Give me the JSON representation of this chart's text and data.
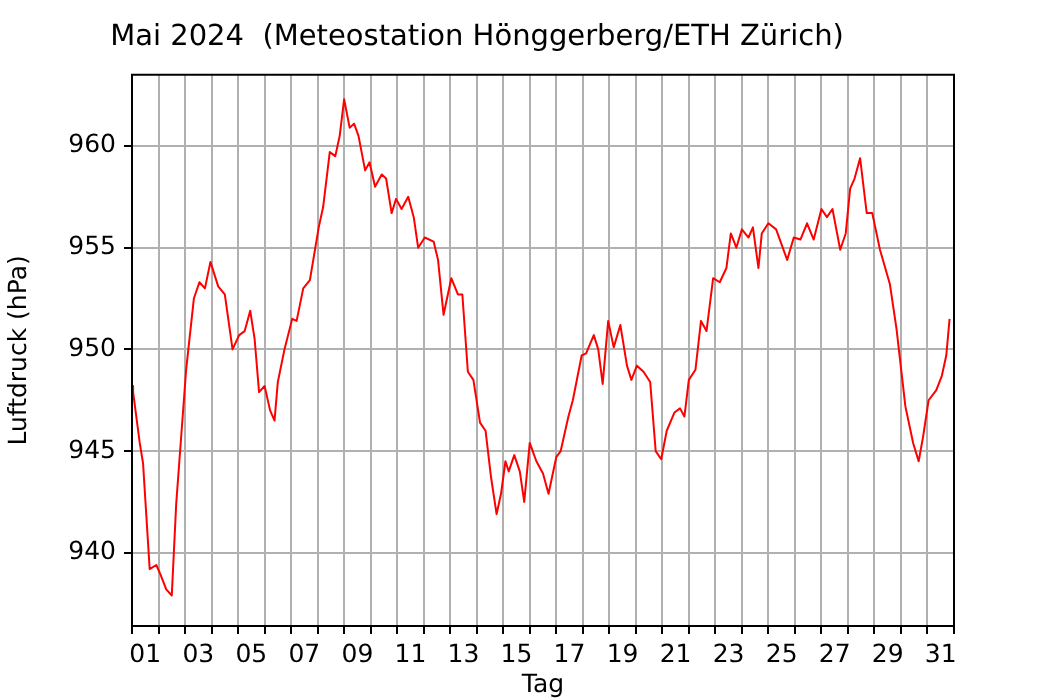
{
  "chart_data": {
    "type": "line",
    "title": "Mai 2024  (Meteostation Hönggerberg/ETH Zürich)",
    "xlabel": "Tag",
    "ylabel": "Luftdruck (hPa)",
    "x": [
      "2024-05-01T00:00",
      "2024-05-01T01:00",
      "2024-05-01T07:00",
      "2024-05-01T10:00",
      "2024-05-01T16:00",
      "2024-05-01T22:00",
      "2024-05-02T02:00",
      "2024-05-02T07:00",
      "2024-05-02T12:00",
      "2024-05-02T16:00",
      "2024-05-03T01:00",
      "2024-05-03T08:00",
      "2024-05-03T13:00",
      "2024-05-03T18:00",
      "2024-05-03T23:00",
      "2024-05-04T06:00",
      "2024-05-04T12:00",
      "2024-05-04T19:00",
      "2024-05-05T01:00",
      "2024-05-05T06:00",
      "2024-05-05T11:00",
      "2024-05-05T15:00",
      "2024-05-05T19:00",
      "2024-05-06T00:00",
      "2024-05-06T05:00",
      "2024-05-06T09:00",
      "2024-05-06T12:00",
      "2024-05-06T18:00",
      "2024-05-07T01:00",
      "2024-05-07T05:00",
      "2024-05-07T11:00",
      "2024-05-07T17:00",
      "2024-05-08T01:00",
      "2024-05-08T05:00",
      "2024-05-08T11:00",
      "2024-05-08T16:00",
      "2024-05-08T20:00",
      "2024-05-09T00:00",
      "2024-05-09T05:00",
      "2024-05-09T09:00",
      "2024-05-09T13:00",
      "2024-05-09T19:00",
      "2024-05-09T23:00",
      "2024-05-10T04:00",
      "2024-05-10T10:00",
      "2024-05-10T14:00",
      "2024-05-10T19:00",
      "2024-05-10T23:00",
      "2024-05-11T04:00",
      "2024-05-11T10:00",
      "2024-05-11T15:00",
      "2024-05-11T19:00",
      "2024-05-12T01:00",
      "2024-05-12T09:00",
      "2024-05-12T13:00",
      "2024-05-12T18:00",
      "2024-05-13T01:00",
      "2024-05-13T07:00",
      "2024-05-13T11:00",
      "2024-05-13T16:00",
      "2024-05-13T21:00",
      "2024-05-14T03:00",
      "2024-05-14T08:00",
      "2024-05-14T13:00",
      "2024-05-14T18:00",
      "2024-05-14T22:00",
      "2024-05-15T02:00",
      "2024-05-15T05:00",
      "2024-05-15T10:00",
      "2024-05-15T15:00",
      "2024-05-15T19:00",
      "2024-05-16T00:00",
      "2024-05-16T06:00",
      "2024-05-16T12:00",
      "2024-05-16T17:00",
      "2024-05-17T00:00",
      "2024-05-17T04:00",
      "2024-05-17T11:00",
      "2024-05-17T15:00",
      "2024-05-17T23:00",
      "2024-05-18T03:00",
      "2024-05-18T10:00",
      "2024-05-18T14:00",
      "2024-05-18T18:00",
      "2024-05-18T23:00",
      "2024-05-19T04:00",
      "2024-05-19T10:00",
      "2024-05-19T16:00",
      "2024-05-19T20:00",
      "2024-05-20T01:00",
      "2024-05-20T07:00",
      "2024-05-20T13:00",
      "2024-05-20T18:00",
      "2024-05-20T23:00",
      "2024-05-21T04:00",
      "2024-05-21T11:00",
      "2024-05-21T16:00",
      "2024-05-21T20:00",
      "2024-05-22T00:00",
      "2024-05-22T06:00",
      "2024-05-22T11:00",
      "2024-05-22T16:00",
      "2024-05-22T22:00",
      "2024-05-23T04:00",
      "2024-05-23T10:00",
      "2024-05-23T14:00",
      "2024-05-23T19:00",
      "2024-05-24T00:00",
      "2024-05-24T06:00",
      "2024-05-24T10:00",
      "2024-05-24T15:00",
      "2024-05-24T18:00",
      "2024-05-25T00:00",
      "2024-05-25T07:00",
      "2024-05-25T17:00",
      "2024-05-25T23:00",
      "2024-05-26T05:00",
      "2024-05-26T11:00",
      "2024-05-26T17:00",
      "2024-05-27T00:00",
      "2024-05-27T05:00",
      "2024-05-27T10:00",
      "2024-05-27T17:00",
      "2024-05-27T22:00",
      "2024-05-28T02:00",
      "2024-05-28T06:00",
      "2024-05-28T11:00",
      "2024-05-28T17:00",
      "2024-05-28T22:00",
      "2024-05-29T05:00",
      "2024-05-29T14:00",
      "2024-05-29T20:00",
      "2024-05-30T04:00",
      "2024-05-30T11:00",
      "2024-05-30T16:00",
      "2024-05-30T20:00",
      "2024-05-31T01:00",
      "2024-05-31T08:00",
      "2024-05-31T13:00",
      "2024-05-31T17:00",
      "2024-05-31T20:00"
    ],
    "series": [
      {
        "color": "#ff0000",
        "values": [
          948.2,
          947.9,
          945.4,
          944.4,
          939.2,
          939.4,
          938.9,
          938.2,
          937.9,
          942.4,
          949.0,
          952.5,
          953.3,
          953.0,
          954.3,
          953.1,
          952.7,
          950.0,
          950.7,
          950.9,
          951.9,
          950.5,
          947.9,
          948.2,
          947.0,
          946.5,
          948.4,
          950.0,
          951.5,
          951.4,
          953.0,
          953.4,
          956.0,
          957.0,
          959.7,
          959.5,
          960.5,
          962.3,
          960.9,
          961.1,
          960.5,
          958.8,
          959.2,
          958.0,
          958.6,
          958.4,
          956.7,
          957.4,
          956.9,
          957.5,
          956.5,
          955.0,
          955.5,
          955.3,
          954.4,
          951.7,
          953.5,
          952.7,
          952.7,
          948.9,
          948.5,
          946.4,
          946.0,
          943.7,
          941.9,
          942.9,
          944.5,
          944.0,
          944.8,
          944.0,
          942.5,
          945.4,
          944.5,
          943.9,
          942.9,
          944.7,
          945.0,
          946.7,
          947.5,
          949.7,
          949.8,
          950.7,
          950.0,
          948.3,
          951.4,
          950.1,
          951.2,
          949.2,
          948.5,
          949.2,
          948.9,
          948.4,
          945.0,
          944.6,
          946.0,
          946.9,
          947.1,
          946.7,
          948.5,
          949.0,
          951.4,
          950.9,
          953.5,
          953.3,
          954.0,
          955.7,
          955.0,
          955.9,
          955.5,
          956.0,
          954.0,
          955.7,
          956.2,
          955.9,
          954.4,
          955.5,
          955.4,
          956.2,
          955.4,
          956.9,
          956.5,
          956.9,
          954.9,
          955.7,
          957.9,
          958.4,
          959.4,
          956.7,
          956.7,
          954.9,
          953.2,
          951.0,
          947.2,
          945.4,
          944.5,
          945.7,
          947.5,
          948.0,
          948.7,
          949.7,
          951.5
        ]
      }
    ],
    "xlim": [
      "2024-05-01",
      "2024-06-01"
    ],
    "xticks": [
      {
        "value": "2024-05-01",
        "label": null
      },
      {
        "value": "2024-05-01T12:00",
        "label": "01"
      },
      {
        "value": "2024-05-02",
        "label": null
      },
      {
        "value": "2024-05-03",
        "label": null
      },
      {
        "value": "2024-05-03T12:00",
        "label": "03"
      },
      {
        "value": "2024-05-04",
        "label": null
      },
      {
        "value": "2024-05-05",
        "label": null
      },
      {
        "value": "2024-05-05T12:00",
        "label": "05"
      },
      {
        "value": "2024-05-06",
        "label": null
      },
      {
        "value": "2024-05-07",
        "label": null
      },
      {
        "value": "2024-05-07T12:00",
        "label": "07"
      },
      {
        "value": "2024-05-08",
        "label": null
      },
      {
        "value": "2024-05-09",
        "label": null
      },
      {
        "value": "2024-05-09T12:00",
        "label": "09"
      },
      {
        "value": "2024-05-10",
        "label": null
      },
      {
        "value": "2024-05-11",
        "label": null
      },
      {
        "value": "2024-05-11T12:00",
        "label": "11"
      },
      {
        "value": "2024-05-12",
        "label": null
      },
      {
        "value": "2024-05-13",
        "label": null
      },
      {
        "value": "2024-05-13T12:00",
        "label": "13"
      },
      {
        "value": "2024-05-14",
        "label": null
      },
      {
        "value": "2024-05-15",
        "label": null
      },
      {
        "value": "2024-05-15T12:00",
        "label": "15"
      },
      {
        "value": "2024-05-16",
        "label": null
      },
      {
        "value": "2024-05-17",
        "label": null
      },
      {
        "value": "2024-05-17T12:00",
        "label": "17"
      },
      {
        "value": "2024-05-18",
        "label": null
      },
      {
        "value": "2024-05-19",
        "label": null
      },
      {
        "value": "2024-05-19T12:00",
        "label": "19"
      },
      {
        "value": "2024-05-20",
        "label": null
      },
      {
        "value": "2024-05-21",
        "label": null
      },
      {
        "value": "2024-05-21T12:00",
        "label": "21"
      },
      {
        "value": "2024-05-22",
        "label": null
      },
      {
        "value": "2024-05-23",
        "label": null
      },
      {
        "value": "2024-05-23T12:00",
        "label": "23"
      },
      {
        "value": "2024-05-24",
        "label": null
      },
      {
        "value": "2024-05-25",
        "label": null
      },
      {
        "value": "2024-05-25T12:00",
        "label": "25"
      },
      {
        "value": "2024-05-26",
        "label": null
      },
      {
        "value": "2024-05-27",
        "label": null
      },
      {
        "value": "2024-05-27T12:00",
        "label": "27"
      },
      {
        "value": "2024-05-28",
        "label": null
      },
      {
        "value": "2024-05-29",
        "label": null
      },
      {
        "value": "2024-05-29T12:00",
        "label": "29"
      },
      {
        "value": "2024-05-30",
        "label": null
      },
      {
        "value": "2024-05-31",
        "label": null
      },
      {
        "value": "2024-05-31T12:00",
        "label": "31"
      },
      {
        "value": "2024-06-01",
        "label": null
      }
    ],
    "ylim": [
      936.4,
      963.5
    ],
    "yticks": [
      940,
      945,
      950,
      955,
      960
    ],
    "grid": true,
    "marker": "none",
    "line_style": "solid"
  }
}
